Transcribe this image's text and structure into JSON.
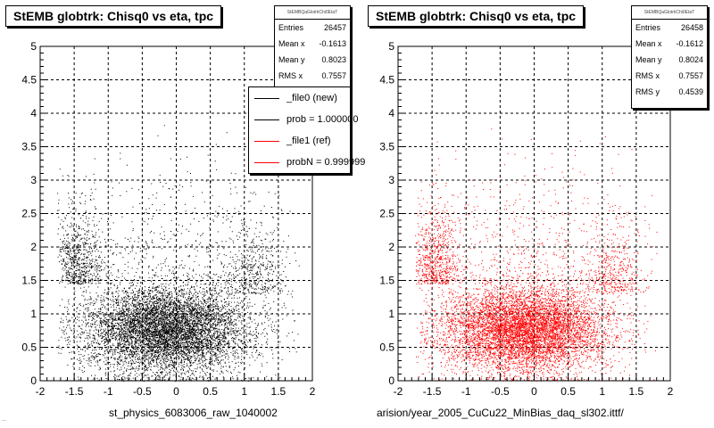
{
  "panels": [
    {
      "title": "StEMB globtrk: Chisq0 vs eta, tpc",
      "stats": {
        "header": "StEMBQaGlotrkChi0EtaT",
        "rows": [
          {
            "label": "Entries",
            "value": "26457"
          },
          {
            "label": "Mean x",
            "value": "-0.1613"
          },
          {
            "label": "Mean y",
            "value": "0.8023"
          },
          {
            "label": "RMS x",
            "value": "0.7557"
          }
        ]
      },
      "legend": [
        {
          "label": "_file0 (new)",
          "color": "#000000"
        },
        {
          "label": "prob = 1.000000",
          "color": "#000000"
        },
        {
          "label": "_file1 (ref)",
          "color": "#ff0000"
        },
        {
          "label": "probN = 0.999999",
          "color": "#ff0000"
        }
      ],
      "xaxis_title": "st_physics_6083006_raw_1040002",
      "marker_color": "#000000"
    },
    {
      "title": "StEMB globtrk: Chisq0 vs eta, tpc",
      "stats": {
        "header": "StEMBQaGlotrkChi0EtaT",
        "rows": [
          {
            "label": "Entries",
            "value": "26458"
          },
          {
            "label": "Mean x",
            "value": "-0.1612"
          },
          {
            "label": "Mean y",
            "value": "0.8024"
          },
          {
            "label": "RMS x",
            "value": "0.7557"
          },
          {
            "label": "RMS y",
            "value": "0.4539"
          }
        ]
      },
      "xaxis_title": "arision/year_2005_CuCu22_MinBias_daq_sl302.ittf/",
      "marker_color": "#ff0000"
    }
  ],
  "corner_text": "...",
  "chart_data": [
    {
      "type": "scatter",
      "title": "StEMB globtrk: Chisq0 vs eta, tpc",
      "xlabel": "st_physics_6083006_raw_1040002",
      "ylabel": "",
      "xlim": [
        -2,
        2
      ],
      "ylim": [
        0,
        5
      ],
      "xticks": [
        "-2",
        "-1.5",
        "-1",
        "-0.5",
        "0",
        "0.5",
        "1",
        "1.5",
        "2"
      ],
      "yticks": [
        "0",
        "0.5",
        "1",
        "1.5",
        "2",
        "2.5",
        "3",
        "3.5",
        "4",
        "4.5",
        "5"
      ],
      "grid": true,
      "series": [
        {
          "name": "_file0 (new)",
          "color": "#000000",
          "entries": 26457,
          "mean_x": -0.1613,
          "mean_y": 0.8023,
          "rms_x": 0.7557
        }
      ]
    },
    {
      "type": "scatter",
      "title": "StEMB globtrk: Chisq0 vs eta, tpc",
      "xlabel": "arision/year_2005_CuCu22_MinBias_daq_sl302.ittf/",
      "ylabel": "",
      "xlim": [
        -2,
        2
      ],
      "ylim": [
        0,
        5
      ],
      "xticks": [
        "-2",
        "-1.5",
        "-1",
        "-0.5",
        "0",
        "0.5",
        "1",
        "1.5",
        "2"
      ],
      "yticks": [
        "0",
        "0.5",
        "1",
        "1.5",
        "2",
        "2.5",
        "3",
        "3.5",
        "4",
        "4.5",
        "5"
      ],
      "grid": true,
      "series": [
        {
          "name": "_file1 (ref)",
          "color": "#ff0000",
          "entries": 26458,
          "mean_x": -0.1612,
          "mean_y": 0.8024,
          "rms_x": 0.7557,
          "rms_y": 0.4539
        }
      ]
    }
  ]
}
